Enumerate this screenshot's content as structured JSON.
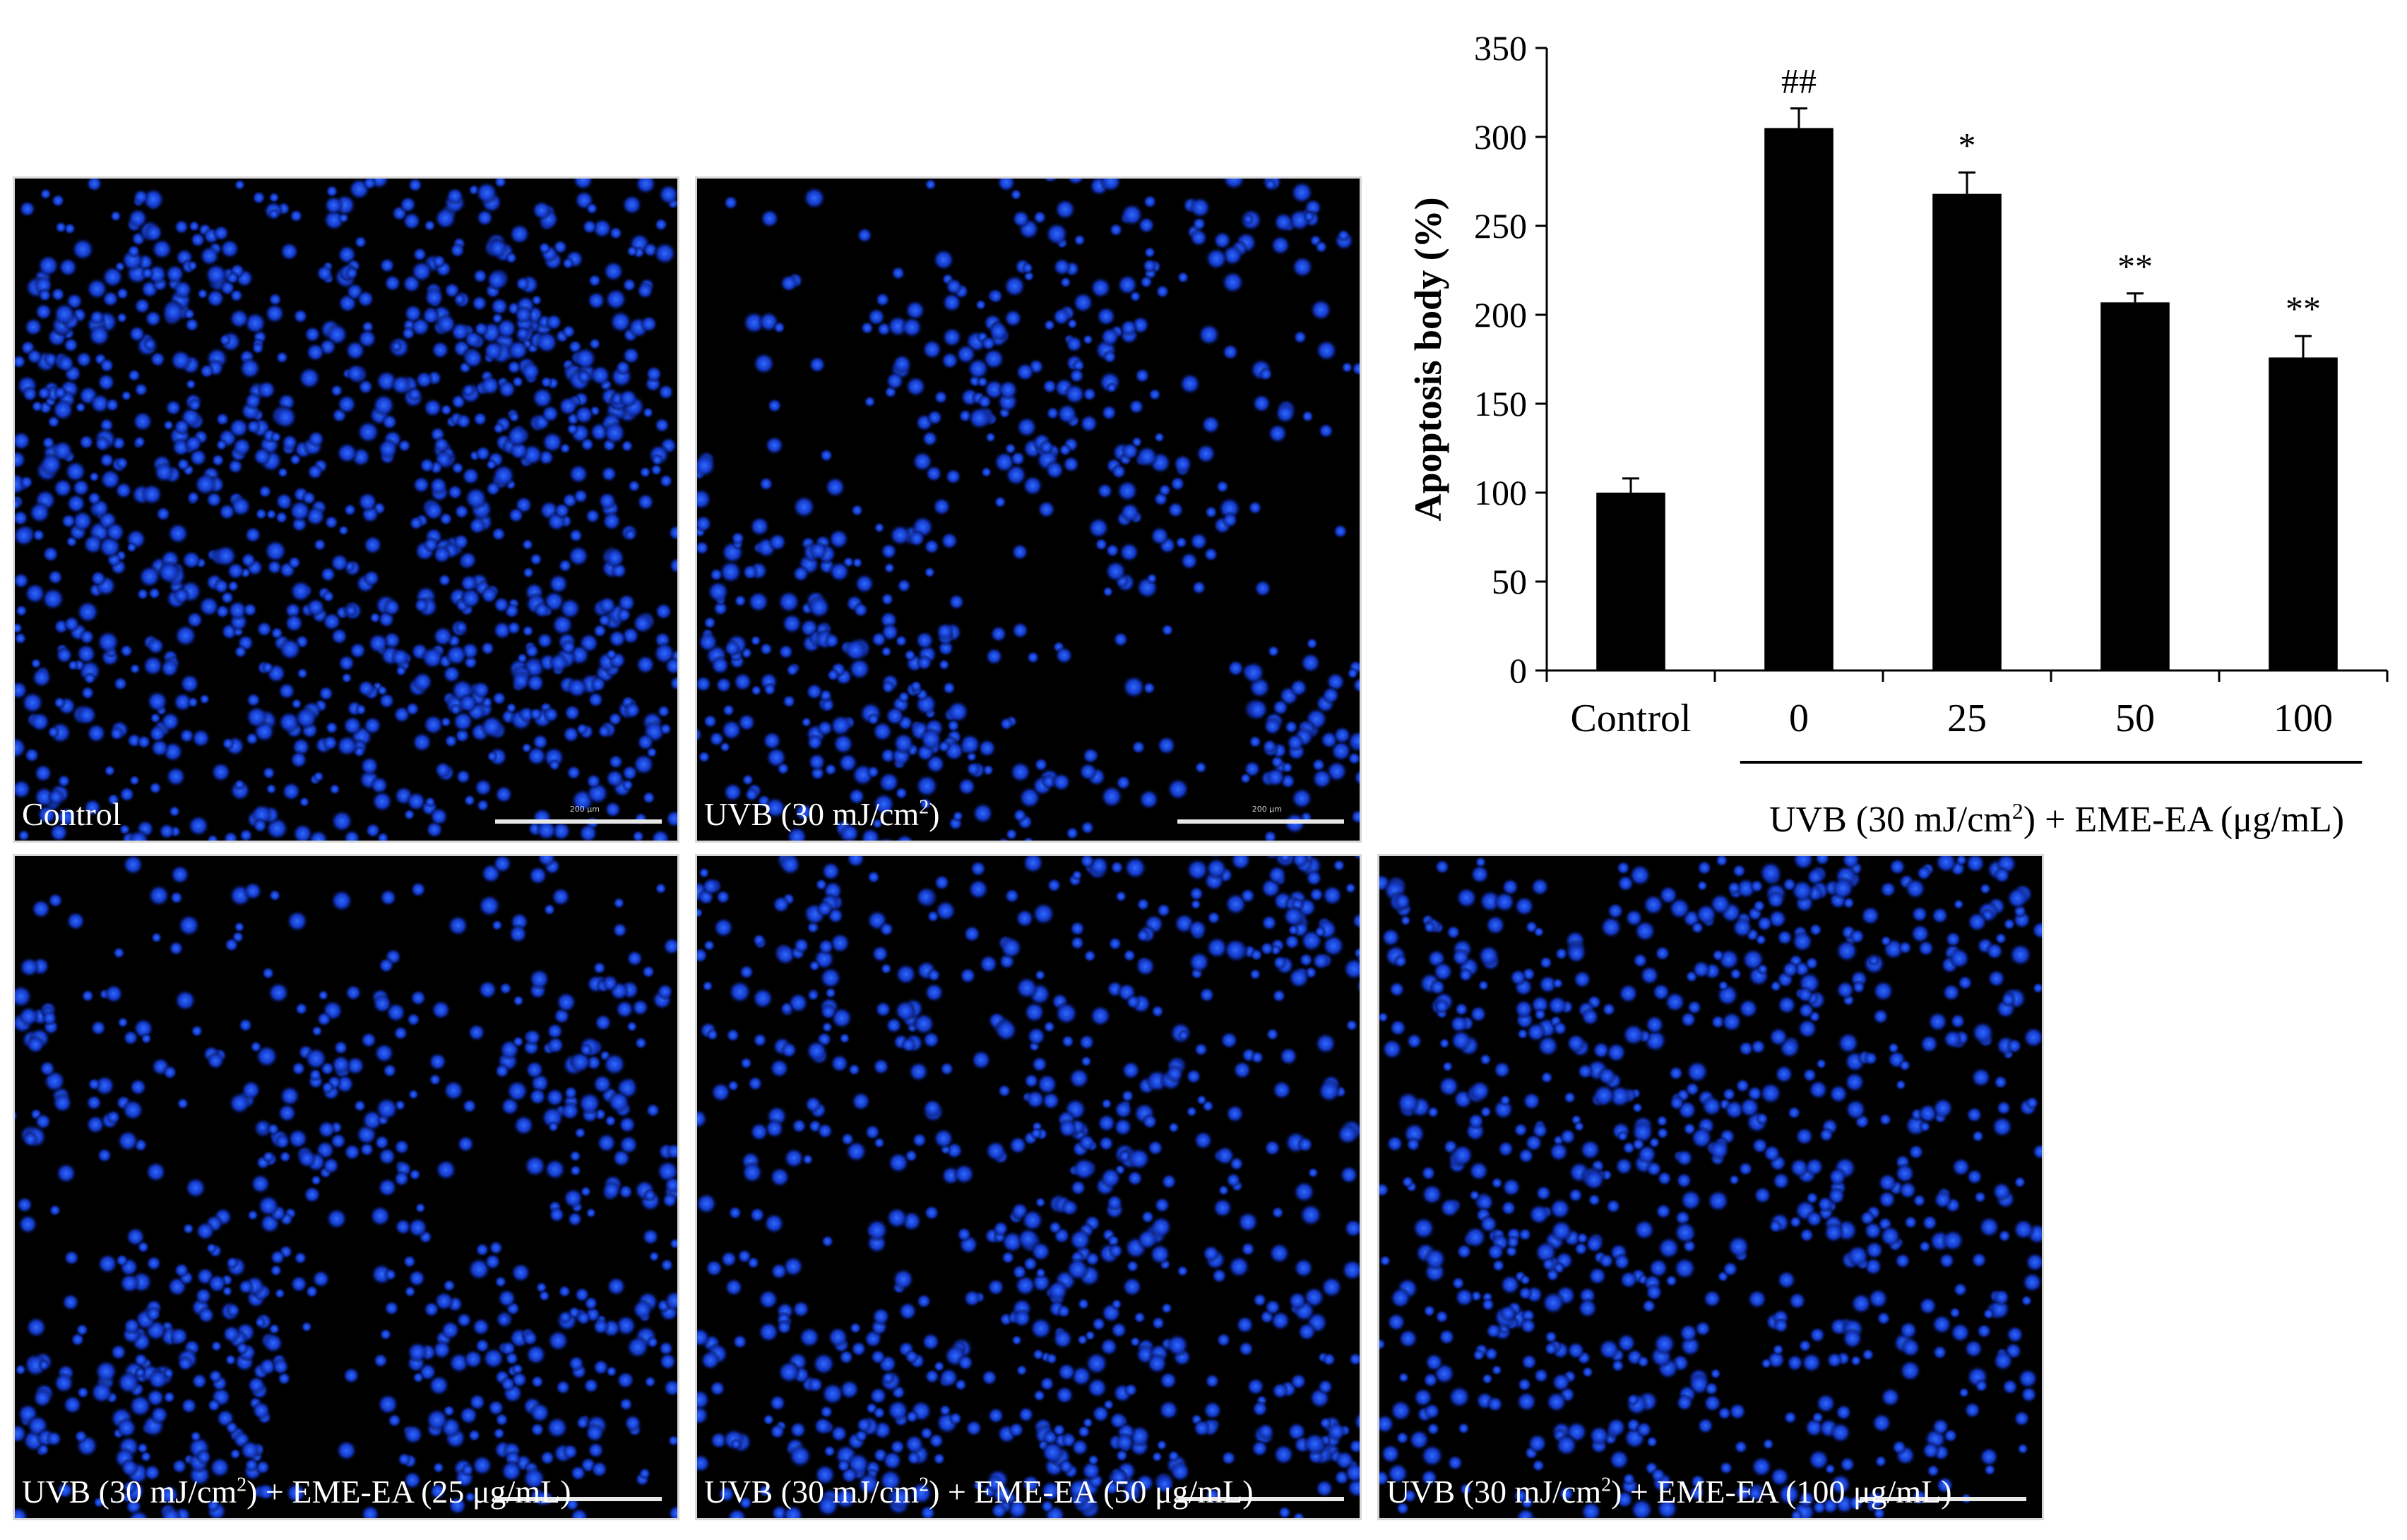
{
  "panels": [
    {
      "id": "control",
      "caption": "Control",
      "scale_label": "200 μm",
      "density": 1.0,
      "clustering": 0.15
    },
    {
      "id": "uvb",
      "caption_pre": "UVB (30 mJ/cm",
      "caption_sup": "2",
      "caption_post": ")",
      "scale_label": "200 μm",
      "density": 0.55,
      "clustering": 0.75
    },
    {
      "id": "eme25",
      "caption_pre": "UVB (30 mJ/cm",
      "caption_sup": "2",
      "caption_post": ") + EME-EA (25 μg/mL)",
      "density": 0.6,
      "clustering": 0.6
    },
    {
      "id": "eme50",
      "caption_pre": "UVB (30 mJ/cm",
      "caption_sup": "2",
      "caption_post": ") + EME-EA (50 μg/mL)",
      "density": 0.72,
      "clustering": 0.35
    },
    {
      "id": "eme100",
      "caption_pre": "UVB (30 mJ/cm",
      "caption_sup": "2",
      "caption_post": ") + EME-EA (100 μg/mL)",
      "density": 0.75,
      "clustering": 0.25
    }
  ],
  "colors": {
    "nucleus": "#2f6bff",
    "nucleus_glow": "#1438c8",
    "background": "#000000",
    "bar": "#000000"
  },
  "chart_data": {
    "type": "bar",
    "categories": [
      "Control",
      "0",
      "25",
      "50",
      "100"
    ],
    "values": [
      100,
      305,
      268,
      207,
      176
    ],
    "errors": [
      8,
      11,
      12,
      5,
      12
    ],
    "annotations": [
      "",
      "##",
      "*",
      "**",
      "**"
    ],
    "ylabel": "Apoptosis body (%)",
    "yticks": [
      0,
      50,
      100,
      150,
      200,
      250,
      300,
      350
    ],
    "ylim": [
      0,
      350
    ],
    "group_label_pre": "UVB  (30 mJ/cm",
    "group_label_sup": "2",
    "group_label_post": ") + EME-EA  (μg/mL)",
    "grid": false
  }
}
